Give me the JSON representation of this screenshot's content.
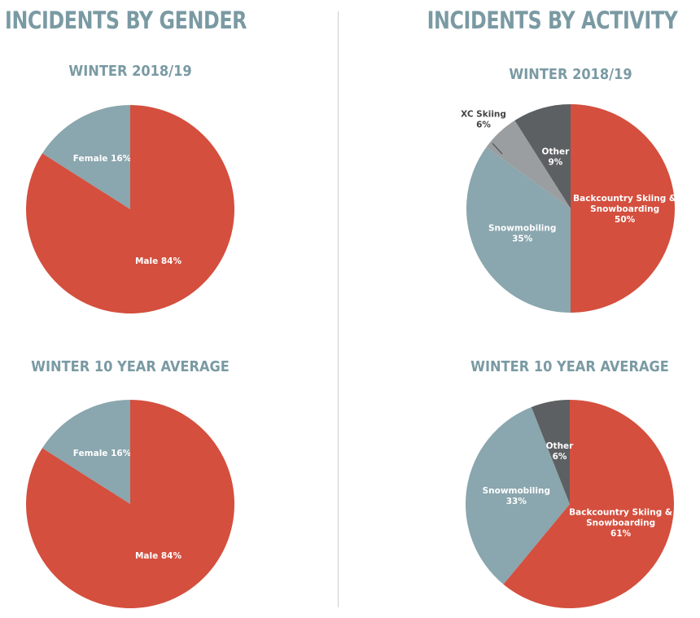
{
  "sections": {
    "gender_title": "INCIDENTS BY GENDER",
    "activity_title": "INCIDENTS BY ACTIVITY"
  },
  "colors": {
    "red": "#d44f3e",
    "blue_gray": "#8aa6ae",
    "light_gray": "#9a9ea1",
    "dark_gray": "#5d6062",
    "title": "#7a9aa3"
  },
  "chart_data": [
    {
      "type": "pie",
      "title": "WINTER 2018/19",
      "slices": [
        {
          "label": [
            "Female 16%"
          ],
          "value": 16,
          "color": "blue_gray"
        },
        {
          "label": [
            "Male 84%"
          ],
          "value": 84,
          "color": "red"
        }
      ]
    },
    {
      "type": "pie",
      "title": "WINTER 2018/19",
      "slices": [
        {
          "label": [
            "Backcountry Skiing &",
            "Snowboarding",
            "50%"
          ],
          "value": 50,
          "color": "red"
        },
        {
          "label": [
            "Snowmobiling",
            "35%"
          ],
          "value": 35,
          "color": "blue_gray"
        },
        {
          "label": [
            "XC Skiing",
            "6%"
          ],
          "value": 6,
          "color": "light_gray",
          "outside": true
        },
        {
          "label": [
            "Other",
            "9%"
          ],
          "value": 9,
          "color": "dark_gray"
        }
      ]
    },
    {
      "type": "pie",
      "title": "WINTER 10 YEAR AVERAGE",
      "slices": [
        {
          "label": [
            "Female 16%"
          ],
          "value": 16,
          "color": "blue_gray"
        },
        {
          "label": [
            "Male 84%"
          ],
          "value": 84,
          "color": "red"
        }
      ]
    },
    {
      "type": "pie",
      "title": "WINTER 10 YEAR AVERAGE",
      "slices": [
        {
          "label": [
            "Backcountry Skiing &",
            "Snowboarding",
            "61%"
          ],
          "value": 61,
          "color": "red"
        },
        {
          "label": [
            "Snowmobiling",
            "33%"
          ],
          "value": 33,
          "color": "blue_gray"
        },
        {
          "label": [
            "Other",
            "6%"
          ],
          "value": 6,
          "color": "dark_gray"
        }
      ]
    }
  ]
}
